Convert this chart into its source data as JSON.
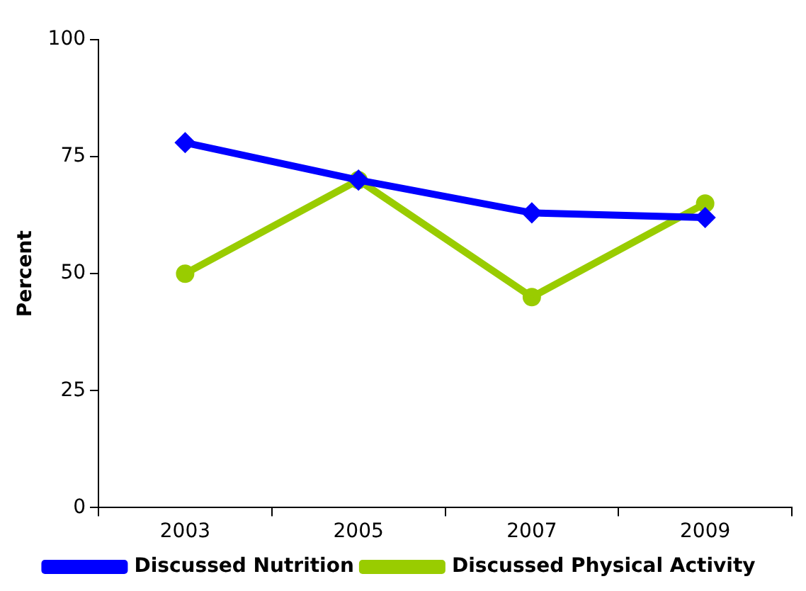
{
  "chart_data": {
    "type": "line",
    "ylabel": "Percent",
    "categories": [
      "2003",
      "2005",
      "2007",
      "2009"
    ],
    "series": [
      {
        "name": "Discussed Physical Activity",
        "color": "#99cc00",
        "values": [
          50,
          70,
          45,
          65
        ],
        "marker": "circle"
      },
      {
        "name": "Discussed Nutrition",
        "color": "#0000ff",
        "values": [
          78,
          70,
          63,
          62
        ],
        "marker": "diamond"
      }
    ],
    "ylim": [
      0,
      100
    ],
    "yticks": [
      0,
      25,
      50,
      75,
      100
    ],
    "grid": false,
    "legend": "bottom",
    "line_style": "solid"
  }
}
